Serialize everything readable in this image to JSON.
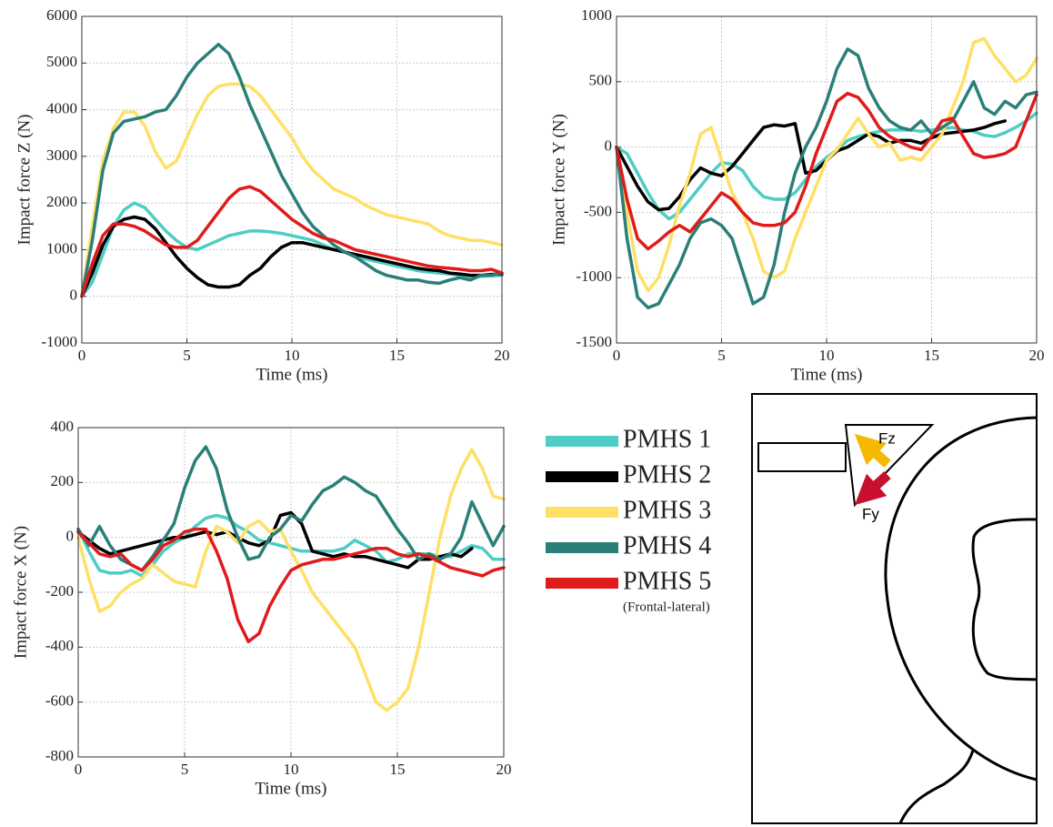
{
  "chart_data": [
    {
      "type": "line",
      "xlabel": "Time (ms)",
      "ylabel": "Impact force Z (N)",
      "x": [
        0,
        0.5,
        1,
        1.5,
        2,
        2.5,
        3,
        3.5,
        4,
        4.5,
        5,
        5.5,
        6,
        6.5,
        7,
        7.5,
        8,
        8.5,
        9,
        9.5,
        10,
        10.5,
        11,
        11.5,
        12,
        12.5,
        13,
        13.5,
        14,
        14.5,
        15,
        15.5,
        16,
        16.5,
        17,
        17.5,
        18,
        18.5,
        19,
        19.5,
        20
      ],
      "xlim": [
        0,
        20
      ],
      "xticks": [
        0,
        5,
        10,
        15,
        20
      ],
      "ylim": [
        -1000,
        6000
      ],
      "yticks": [
        -1000,
        0,
        1000,
        2000,
        3000,
        4000,
        5000,
        6000
      ],
      "grid": true,
      "series": [
        {
          "name": "PMHS 1",
          "color": "#4ecdc4",
          "values": [
            0,
            300,
            900,
            1500,
            1850,
            2000,
            1900,
            1650,
            1400,
            1200,
            1050,
            1000,
            1100,
            1200,
            1300,
            1350,
            1400,
            1400,
            1380,
            1350,
            1300,
            1250,
            1200,
            1100,
            1000,
            950,
            880,
            800,
            750,
            700,
            650,
            600,
            550,
            520,
            500,
            480,
            450,
            420,
            430,
            440,
            450
          ]
        },
        {
          "name": "PMHS 2",
          "color": "#000000",
          "values": [
            0,
            500,
            1100,
            1500,
            1650,
            1700,
            1650,
            1450,
            1150,
            850,
            600,
            400,
            250,
            200,
            200,
            250,
            450,
            600,
            850,
            1050,
            1150,
            1150,
            1100,
            1050,
            1000,
            950,
            900,
            850,
            800,
            750,
            700,
            650,
            600,
            570,
            550,
            500,
            480,
            450,
            450,
            470,
            480
          ]
        },
        {
          "name": "PMHS 3",
          "color": "#ffe066",
          "values": [
            0,
            1500,
            2900,
            3600,
            3950,
            3950,
            3650,
            3100,
            2750,
            2900,
            3400,
            3900,
            4300,
            4500,
            4550,
            4550,
            4500,
            4300,
            4000,
            3700,
            3400,
            3000,
            2700,
            2500,
            2300,
            2200,
            2100,
            1950,
            1850,
            1750,
            1700,
            1650,
            1600,
            1550,
            1400,
            1300,
            1250,
            1200,
            1200,
            1150,
            1100
          ]
        },
        {
          "name": "PMHS 4",
          "color": "#2a7f78",
          "values": [
            0,
            1200,
            2700,
            3500,
            3750,
            3800,
            3850,
            3950,
            4000,
            4300,
            4700,
            5000,
            5200,
            5400,
            5200,
            4700,
            4100,
            3600,
            3100,
            2600,
            2200,
            1800,
            1500,
            1300,
            1100,
            950,
            850,
            700,
            550,
            450,
            400,
            350,
            350,
            300,
            280,
            350,
            400,
            350,
            450,
            450,
            500
          ]
        },
        {
          "name": "PMHS 5",
          "color": "#e01b1b",
          "values": [
            0,
            700,
            1300,
            1550,
            1550,
            1500,
            1400,
            1250,
            1100,
            1050,
            1050,
            1200,
            1500,
            1800,
            2100,
            2300,
            2350,
            2250,
            2050,
            1850,
            1650,
            1500,
            1350,
            1250,
            1200,
            1100,
            1000,
            950,
            900,
            850,
            800,
            750,
            700,
            650,
            620,
            600,
            580,
            550,
            550,
            580,
            500
          ]
        }
      ]
    },
    {
      "type": "line",
      "xlabel": "Time (ms)",
      "ylabel": "Impact force Y (N)",
      "x": [
        0,
        0.5,
        1,
        1.5,
        2,
        2.5,
        3,
        3.5,
        4,
        4.5,
        5,
        5.5,
        6,
        6.5,
        7,
        7.5,
        8,
        8.5,
        9,
        9.5,
        10,
        10.5,
        11,
        11.5,
        12,
        12.5,
        13,
        13.5,
        14,
        14.5,
        15,
        15.5,
        16,
        16.5,
        17,
        17.5,
        18,
        18.5,
        19,
        19.5,
        20
      ],
      "xlim": [
        0,
        20
      ],
      "xticks": [
        0,
        5,
        10,
        15,
        20
      ],
      "ylim": [
        -1500,
        1000
      ],
      "yticks": [
        -1500,
        -1000,
        -500,
        0,
        500,
        1000
      ],
      "grid": true,
      "series": [
        {
          "color": "#4ecdc4",
          "values": [
            0,
            -50,
            -200,
            -350,
            -480,
            -550,
            -500,
            -400,
            -300,
            -200,
            -120,
            -130,
            -180,
            -300,
            -380,
            -400,
            -400,
            -350,
            -250,
            -150,
            -80,
            -20,
            50,
            80,
            100,
            120,
            130,
            130,
            130,
            120,
            130,
            140,
            150,
            130,
            120,
            90,
            80,
            110,
            150,
            200,
            260
          ]
        },
        {
          "color": "#000000",
          "values": [
            0,
            -150,
            -300,
            -420,
            -480,
            -470,
            -380,
            -250,
            -160,
            -200,
            -220,
            -150,
            -50,
            50,
            150,
            170,
            160,
            180,
            -200,
            -180,
            -100,
            -30,
            0,
            50,
            100,
            80,
            30,
            50,
            50,
            30,
            70,
            100,
            110,
            120,
            130,
            150,
            180,
            200,
            null,
            null,
            null
          ]
        },
        {
          "color": "#ffe066",
          "values": [
            0,
            -500,
            -950,
            -1100,
            -1000,
            -750,
            -450,
            -200,
            100,
            150,
            -100,
            -350,
            -500,
            -700,
            -950,
            -1000,
            -950,
            -700,
            -500,
            -300,
            -100,
            -20,
            100,
            220,
            100,
            0,
            30,
            -100,
            -80,
            -100,
            0,
            100,
            300,
            500,
            800,
            830,
            700,
            600,
            500,
            550,
            680
          ]
        },
        {
          "color": "#2a7f78",
          "values": [
            0,
            -700,
            -1150,
            -1230,
            -1200,
            -1050,
            -900,
            -700,
            -580,
            -550,
            -600,
            -700,
            -950,
            -1200,
            -1150,
            -900,
            -500,
            -200,
            0,
            150,
            350,
            600,
            750,
            700,
            450,
            300,
            200,
            150,
            130,
            200,
            100,
            150,
            200,
            350,
            500,
            300,
            250,
            350,
            300,
            400,
            420
          ]
        },
        {
          "color": "#e01b1b",
          "values": [
            0,
            -400,
            -700,
            -780,
            -720,
            -650,
            -600,
            -650,
            -550,
            -450,
            -350,
            -400,
            -500,
            -580,
            -600,
            -600,
            -580,
            -500,
            -300,
            -50,
            150,
            350,
            410,
            380,
            280,
            150,
            80,
            40,
            0,
            -20,
            80,
            200,
            220,
            80,
            -50,
            -80,
            -70,
            -50,
            0,
            200,
            400
          ]
        }
      ]
    },
    {
      "type": "line",
      "xlabel": "Time (ms)",
      "ylabel": "Impact force X (N)",
      "x": [
        0,
        0.5,
        1,
        1.5,
        2,
        2.5,
        3,
        3.5,
        4,
        4.5,
        5,
        5.5,
        6,
        6.5,
        7,
        7.5,
        8,
        8.5,
        9,
        9.5,
        10,
        10.5,
        11,
        11.5,
        12,
        12.5,
        13,
        13.5,
        14,
        14.5,
        15,
        15.5,
        16,
        16.5,
        17,
        17.5,
        18,
        18.5,
        19,
        19.5,
        20
      ],
      "xlim": [
        0,
        20
      ],
      "xticks": [
        0,
        5,
        10,
        15,
        20
      ],
      "ylim": [
        -800,
        400
      ],
      "yticks": [
        -800,
        -600,
        -400,
        -200,
        0,
        200,
        400
      ],
      "grid": true,
      "series": [
        {
          "color": "#4ecdc4",
          "values": [
            30,
            -50,
            -120,
            -130,
            -130,
            -120,
            -140,
            -100,
            -50,
            -20,
            0,
            40,
            70,
            80,
            70,
            40,
            20,
            -10,
            -20,
            -30,
            -40,
            -50,
            -50,
            -50,
            -50,
            -40,
            -10,
            -30,
            -50,
            -90,
            -80,
            -60,
            -60,
            -60,
            -70,
            -70,
            -50,
            -30,
            -40,
            -80,
            -80
          ]
        },
        {
          "color": "#000000",
          "values": [
            20,
            -10,
            -40,
            -60,
            -50,
            -40,
            -30,
            -20,
            -10,
            0,
            0,
            10,
            20,
            10,
            20,
            0,
            -20,
            -30,
            -10,
            80,
            90,
            50,
            -50,
            -60,
            -70,
            -60,
            -70,
            -70,
            -80,
            -90,
            -100,
            -110,
            -80,
            -80,
            -70,
            -60,
            -70,
            -40,
            null,
            null,
            null
          ]
        },
        {
          "color": "#ffe066",
          "values": [
            0,
            -150,
            -270,
            -250,
            -200,
            -170,
            -150,
            -100,
            -130,
            -160,
            -170,
            -180,
            -50,
            40,
            20,
            -20,
            40,
            60,
            20,
            30,
            -50,
            -120,
            -200,
            -250,
            -300,
            -350,
            -400,
            -500,
            -600,
            -630,
            -600,
            -550,
            -400,
            -200,
            0,
            150,
            250,
            320,
            250,
            150,
            140
          ]
        },
        {
          "color": "#2a7f78",
          "values": [
            30,
            -30,
            40,
            -30,
            -80,
            -100,
            -120,
            -70,
            -10,
            50,
            180,
            280,
            330,
            250,
            100,
            0,
            -80,
            -70,
            0,
            30,
            80,
            60,
            120,
            170,
            190,
            220,
            200,
            170,
            150,
            90,
            30,
            -20,
            -80,
            -60,
            -80,
            -60,
            0,
            130,
            50,
            -30,
            40
          ]
        },
        {
          "color": "#e01b1b",
          "values": [
            20,
            -20,
            -60,
            -70,
            -60,
            -100,
            -120,
            -80,
            -30,
            -10,
            20,
            30,
            30,
            -50,
            -150,
            -300,
            -380,
            -350,
            -250,
            -180,
            -120,
            -100,
            -90,
            -80,
            -80,
            -70,
            -60,
            -50,
            -40,
            -40,
            -60,
            -70,
            -60,
            -70,
            -90,
            -110,
            -120,
            -130,
            -140,
            -120,
            -110
          ]
        }
      ]
    }
  ],
  "legend": {
    "note": "(Frontal-lateral)"
  },
  "diagram": {
    "force_z": "Fz",
    "force_y": "Fy"
  }
}
